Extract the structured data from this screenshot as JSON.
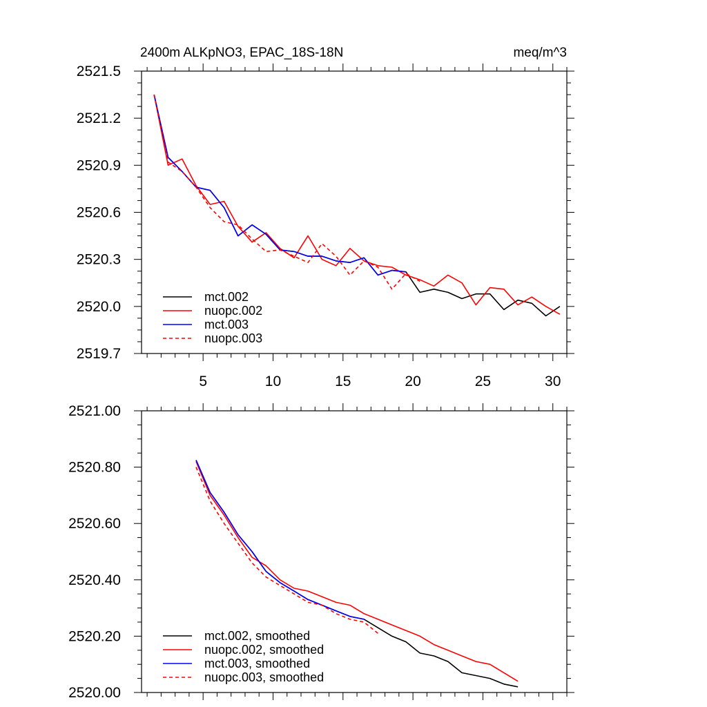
{
  "chart_data": [
    {
      "type": "line",
      "title_left": "2400m ALKpNO3, EPAC_18S-18N",
      "title_right": "meq/m^3",
      "xlim": [
        0.6,
        31
      ],
      "ylim": [
        2519.7,
        2521.5
      ],
      "x_ticks": [
        5,
        10,
        15,
        20,
        25,
        30
      ],
      "x_tick_labels": [
        "5",
        "10",
        "15",
        "20",
        "25",
        "30"
      ],
      "y_ticks": [
        2519.7,
        2520.0,
        2520.3,
        2520.6,
        2520.9,
        2521.2,
        2521.5
      ],
      "y_tick_labels": [
        "2519.7",
        "2520.0",
        "2520.3",
        "2520.6",
        "2520.9",
        "2521.2",
        "2521.5"
      ],
      "grid": false,
      "legend_position": "bottom-left",
      "series": [
        {
          "name": "mct.002",
          "color": "#000000",
          "dash": "solid",
          "x": [
            1.5,
            2.5,
            3.5,
            4.5,
            5.5,
            6.5,
            7.5,
            8.5,
            9.5,
            10.5,
            11.5,
            12.5,
            13.5,
            14.5,
            15.5,
            16.5,
            17.5,
            18.5,
            19.5,
            20.5,
            21.5,
            22.5,
            23.5,
            24.5,
            25.5,
            26.5,
            27.5,
            28.5,
            29.5,
            30.5
          ],
          "y": [
            2521.35,
            2520.95,
            2520.86,
            2520.76,
            2520.74,
            2520.63,
            2520.45,
            2520.52,
            2520.46,
            2520.36,
            2520.35,
            2520.32,
            2520.32,
            2520.29,
            2520.28,
            2520.31,
            2520.2,
            2520.23,
            2520.22,
            2520.09,
            2520.11,
            2520.09,
            2520.05,
            2520.08,
            2520.08,
            2519.98,
            2520.04,
            2520.02,
            2519.94,
            2520.0
          ]
        },
        {
          "name": "nuopc.002",
          "color": "#ff0000",
          "dash": "solid",
          "x": [
            1.5,
            2.5,
            3.5,
            4.5,
            5.5,
            6.5,
            7.5,
            8.5,
            9.5,
            10.5,
            11.5,
            12.5,
            13.5,
            14.5,
            15.5,
            16.5,
            17.5,
            18.5,
            19.5,
            20.5,
            21.5,
            22.5,
            23.5,
            24.5,
            25.5,
            26.5,
            27.5,
            28.5,
            29.5,
            30.5
          ],
          "y": [
            2521.35,
            2520.9,
            2520.94,
            2520.77,
            2520.65,
            2520.67,
            2520.51,
            2520.41,
            2520.47,
            2520.37,
            2520.31,
            2520.45,
            2520.3,
            2520.26,
            2520.37,
            2520.29,
            2520.26,
            2520.25,
            2520.2,
            2520.17,
            2520.13,
            2520.2,
            2520.15,
            2520.01,
            2520.12,
            2520.11,
            2520.01,
            2520.06,
            2520.0,
            2519.95
          ]
        },
        {
          "name": "mct.003",
          "color": "#0000ff",
          "dash": "solid",
          "x": [
            1.5,
            2.5,
            3.5,
            4.5,
            5.5,
            6.5,
            7.5,
            8.5,
            9.5,
            10.5,
            11.5,
            12.5,
            13.5,
            14.5,
            15.5,
            16.5,
            17.5,
            18.5,
            19.5
          ],
          "y": [
            2521.35,
            2520.95,
            2520.86,
            2520.76,
            2520.74,
            2520.63,
            2520.45,
            2520.52,
            2520.46,
            2520.36,
            2520.35,
            2520.32,
            2520.32,
            2520.29,
            2520.28,
            2520.31,
            2520.2,
            2520.23,
            2520.22
          ]
        },
        {
          "name": "nuopc.003",
          "color": "#ff0000",
          "dash": "dashed",
          "x": [
            1.5,
            2.5,
            3.5,
            4.5,
            5.5,
            6.5,
            7.5,
            8.5,
            9.5,
            10.5,
            11.5,
            12.5,
            13.5,
            14.5,
            15.5,
            16.5,
            17.5,
            18.5,
            19.5,
            20.5
          ],
          "y": [
            2521.35,
            2520.92,
            2520.86,
            2520.76,
            2520.63,
            2520.54,
            2520.52,
            2520.43,
            2520.35,
            2520.36,
            2520.32,
            2520.28,
            2520.4,
            2520.32,
            2520.2,
            2520.29,
            2520.25,
            2520.11,
            2520.21,
            2520.16
          ]
        }
      ]
    },
    {
      "type": "line",
      "xlim": [
        0.6,
        31
      ],
      "ylim": [
        2520.0,
        2521.0
      ],
      "x_ticks": [
        5,
        10,
        15,
        20,
        25,
        30
      ],
      "y_ticks": [
        2520.0,
        2520.2,
        2520.4,
        2520.6,
        2520.8,
        2521.0
      ],
      "y_tick_labels": [
        "2520.00",
        "2520.20",
        "2520.40",
        "2520.60",
        "2520.80",
        "2521.00"
      ],
      "grid": false,
      "legend_position": "bottom-left",
      "series": [
        {
          "name": "mct.002, smoothed",
          "color": "#000000",
          "dash": "solid",
          "x": [
            4.5,
            5.5,
            6.5,
            7.5,
            8.5,
            9.5,
            10.5,
            11.5,
            12.5,
            13.5,
            14.5,
            15.5,
            16.5,
            17.5,
            18.5,
            19.5,
            20.5,
            21.5,
            22.5,
            23.5,
            24.5,
            25.5,
            26.5,
            27.5
          ],
          "y": [
            2520.825,
            2520.71,
            2520.64,
            2520.56,
            2520.5,
            2520.43,
            2520.39,
            2520.36,
            2520.33,
            2520.31,
            2520.29,
            2520.27,
            2520.26,
            2520.23,
            2520.2,
            2520.18,
            2520.14,
            2520.13,
            2520.11,
            2520.07,
            2520.06,
            2520.05,
            2520.03,
            2520.02
          ]
        },
        {
          "name": "nuopc.002, smoothed",
          "color": "#ff0000",
          "dash": "solid",
          "x": [
            4.5,
            5.5,
            6.5,
            7.5,
            8.5,
            9.5,
            10.5,
            11.5,
            12.5,
            13.5,
            14.5,
            15.5,
            16.5,
            17.5,
            18.5,
            19.5,
            20.5,
            21.5,
            22.5,
            23.5,
            24.5,
            25.5,
            26.5,
            27.5
          ],
          "y": [
            2520.82,
            2520.7,
            2520.63,
            2520.55,
            2520.48,
            2520.45,
            2520.4,
            2520.37,
            2520.36,
            2520.34,
            2520.32,
            2520.31,
            2520.28,
            2520.26,
            2520.24,
            2520.22,
            2520.2,
            2520.17,
            2520.15,
            2520.13,
            2520.11,
            2520.1,
            2520.07,
            2520.04
          ]
        },
        {
          "name": "mct.003, smoothed",
          "color": "#0000ff",
          "dash": "solid",
          "x": [
            4.5,
            5.5,
            6.5,
            7.5,
            8.5,
            9.5,
            10.5,
            11.5,
            12.5,
            13.5,
            14.5,
            15.5,
            16.5
          ],
          "y": [
            2520.825,
            2520.71,
            2520.64,
            2520.56,
            2520.5,
            2520.43,
            2520.39,
            2520.36,
            2520.33,
            2520.31,
            2520.29,
            2520.27,
            2520.26
          ]
        },
        {
          "name": "nuopc.003, smoothed",
          "color": "#ff0000",
          "dash": "dashed",
          "x": [
            4.5,
            5.5,
            6.5,
            7.5,
            8.5,
            9.5,
            10.5,
            11.5,
            12.5,
            13.5,
            14.5,
            15.5,
            16.5,
            17.5
          ],
          "y": [
            2520.8,
            2520.68,
            2520.6,
            2520.53,
            2520.46,
            2520.41,
            2520.38,
            2520.35,
            2520.32,
            2520.31,
            2520.28,
            2520.26,
            2520.25,
            2520.21
          ]
        }
      ]
    }
  ]
}
